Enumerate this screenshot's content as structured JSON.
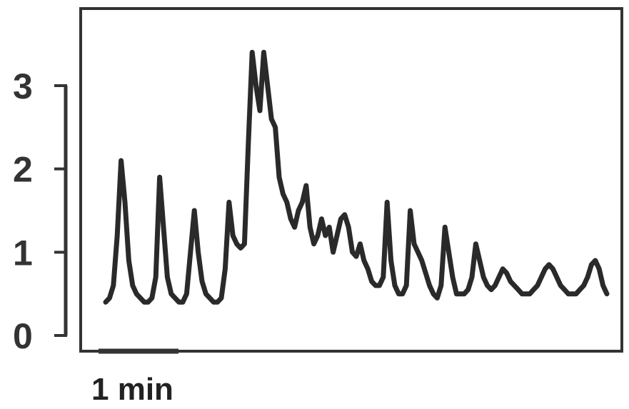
{
  "chart_data": {
    "type": "line",
    "title": "",
    "xlabel": "",
    "ylabel": "",
    "ylim": [
      0,
      3
    ],
    "yticks": [
      "0",
      "1",
      "2",
      "3"
    ],
    "grid": false,
    "legend": "none",
    "scale_bar": {
      "label": "1 min",
      "minutes": 1
    },
    "line_color": "#2a2a2a",
    "series": [
      {
        "x_minutes": [
          0.0,
          0.05,
          0.1,
          0.15,
          0.2,
          0.25,
          0.3,
          0.35,
          0.4,
          0.45,
          0.5,
          0.55,
          0.6,
          0.65,
          0.7,
          0.75,
          0.8,
          0.85,
          0.9,
          0.95,
          1.0,
          1.05,
          1.1,
          1.15,
          1.2,
          1.25,
          1.3,
          1.35,
          1.4,
          1.45,
          1.5,
          1.55,
          1.6,
          1.65,
          1.7,
          1.75,
          1.8,
          1.85,
          1.9,
          1.95,
          2.0,
          2.05,
          2.1,
          2.15,
          2.2,
          2.25,
          2.3,
          2.35,
          2.4,
          2.45,
          2.5,
          2.55,
          2.6,
          2.65,
          2.7,
          2.75,
          2.8,
          2.85,
          2.9,
          2.95,
          3.0,
          3.05,
          3.1,
          3.15,
          3.2,
          3.25,
          3.3,
          3.35,
          3.4,
          3.45,
          3.5,
          3.55,
          3.6,
          3.65,
          3.7,
          3.75,
          3.8,
          3.85,
          3.9,
          3.95,
          4.0,
          4.05,
          4.1,
          4.15,
          4.2,
          4.25,
          4.3,
          4.35,
          4.4,
          4.45,
          4.5,
          4.55,
          4.6,
          4.65,
          4.7,
          4.75,
          4.8,
          4.85,
          4.9,
          4.95,
          5.0,
          5.05,
          5.1,
          5.15,
          5.2,
          5.25,
          5.3,
          5.35,
          5.4,
          5.45,
          5.5,
          5.55,
          5.6,
          5.65,
          5.7,
          5.75,
          5.8,
          5.85,
          5.9,
          5.95,
          6.0,
          6.05,
          6.1,
          6.15,
          6.2,
          6.25,
          6.3,
          6.35,
          6.4,
          6.45,
          6.5
        ],
        "values": [
          0.4,
          0.45,
          0.6,
          1.2,
          2.1,
          1.6,
          0.9,
          0.6,
          0.5,
          0.45,
          0.4,
          0.4,
          0.45,
          0.7,
          1.9,
          1.3,
          0.7,
          0.5,
          0.45,
          0.4,
          0.4,
          0.5,
          1.0,
          1.5,
          1.0,
          0.65,
          0.5,
          0.45,
          0.4,
          0.4,
          0.45,
          0.8,
          1.6,
          1.2,
          1.1,
          1.05,
          1.1,
          2.3,
          3.4,
          3.0,
          2.7,
          3.4,
          3.0,
          2.6,
          2.5,
          1.9,
          1.7,
          1.6,
          1.4,
          1.3,
          1.5,
          1.6,
          1.8,
          1.3,
          1.1,
          1.2,
          1.4,
          1.2,
          1.3,
          1.0,
          1.2,
          1.4,
          1.45,
          1.3,
          1.0,
          0.95,
          1.1,
          0.9,
          0.8,
          0.65,
          0.6,
          0.6,
          0.7,
          1.6,
          0.9,
          0.6,
          0.5,
          0.5,
          0.6,
          1.5,
          1.1,
          1.0,
          0.9,
          0.75,
          0.6,
          0.5,
          0.45,
          0.6,
          1.3,
          1.0,
          0.7,
          0.5,
          0.5,
          0.5,
          0.55,
          0.7,
          1.1,
          0.9,
          0.7,
          0.6,
          0.55,
          0.6,
          0.7,
          0.8,
          0.75,
          0.65,
          0.6,
          0.55,
          0.5,
          0.5,
          0.5,
          0.55,
          0.6,
          0.7,
          0.8,
          0.85,
          0.8,
          0.7,
          0.6,
          0.55,
          0.5,
          0.5,
          0.5,
          0.55,
          0.6,
          0.7,
          0.85,
          0.9,
          0.8,
          0.6,
          0.5
        ]
      }
    ]
  }
}
